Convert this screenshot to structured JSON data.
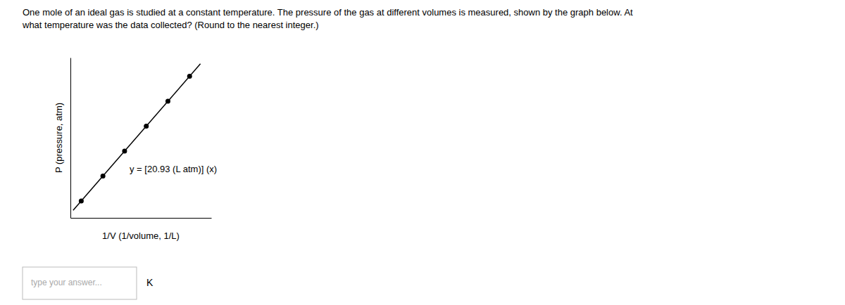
{
  "chart_data": {
    "type": "scatter",
    "title": "One mole of an ideal gas is studied at a constant temperature. The pressure of the gas at different volumes is measured, shown by the graph below. At\nwhat temperature was the data collected? (Round to the nearest integer.)",
    "x_label": "1/V (1/volume, 1/L)",
    "y_label": "P (pressure, atm)",
    "annotations": [
      "y = [20.93 (L atm)] (x)",
      "type your answer...",
      "K"
    ],
    "series": [
      {
        "type": "line",
        "color": "#000000",
        "x": [
          0.01,
          0.48
        ],
        "values": [
          0.2093,
          10.0464
        ]
      },
      {
        "type": "scatter",
        "color": "#000000",
        "x": [
          0.04,
          0.12,
          0.2,
          0.28,
          0.36,
          0.44
        ],
        "values": [
          0.8372,
          2.5116,
          4.186,
          5.8604,
          7.5348,
          9.2092
        ]
      }
    ],
    "xlim": [
      0,
      0.52
    ],
    "ylim": [
      -0.3,
      10.465
    ],
    "tick_labels": false,
    "grid": false
  }
}
